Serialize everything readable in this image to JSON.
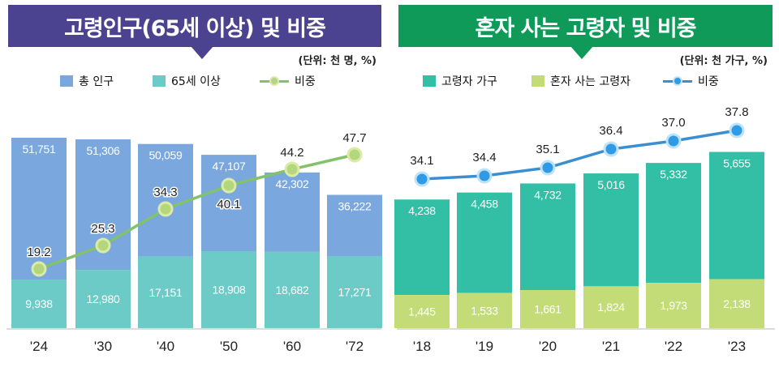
{
  "chart_data": [
    {
      "type": "bar",
      "stacked": true,
      "title": "고령인구(65세 이상) 및 비중",
      "unit": "(단위: 천 명, %)",
      "categories": [
        "'24",
        "'30",
        "'40",
        "'50",
        "'60",
        "'72"
      ],
      "series": [
        {
          "name": "65세 이상",
          "values": [
            9938,
            12980,
            17151,
            18908,
            18682,
            17271
          ],
          "labels": [
            "9,938",
            "12,980",
            "17,151",
            "18,908",
            "18,682",
            "17,271"
          ],
          "color": "#6ccbc6"
        },
        {
          "name": "총 인구",
          "values": [
            51751,
            51306,
            50059,
            47107,
            42302,
            36222
          ],
          "labels": [
            "51,751",
            "51,306",
            "50,059",
            "47,107",
            "42,302",
            "36,222"
          ],
          "color": "#7aa7dd"
        }
      ],
      "line": {
        "name": "비중",
        "values": [
          19.2,
          25.3,
          34.3,
          40.1,
          44.2,
          47.7
        ],
        "labels": [
          "19.2",
          "25.3",
          "34.3",
          "40.1",
          "44.2",
          "47.7"
        ],
        "color": "#82c26a",
        "marker_fill": "#b4d77e",
        "marker_stroke": "#dbeba7"
      }
    },
    {
      "type": "bar",
      "stacked": true,
      "title": "혼자 사는 고령자 및 비중",
      "unit": "(단위: 천 가구, %)",
      "categories": [
        "'18",
        "'19",
        "'20",
        "'21",
        "'22",
        "'23"
      ],
      "series": [
        {
          "name": "혼자 사는 고령자",
          "values": [
            1445,
            1533,
            1661,
            1824,
            1973,
            2138
          ],
          "labels": [
            "1,445",
            "1,533",
            "1,661",
            "1,824",
            "1,973",
            "2,138"
          ],
          "color": "#c3dc78"
        },
        {
          "name": "고령자 가구",
          "values": [
            4238,
            4458,
            4732,
            5016,
            5332,
            5655
          ],
          "labels": [
            "4,238",
            "4,458",
            "4,732",
            "5,016",
            "5,332",
            "5,655"
          ],
          "color": "#33bfa6"
        }
      ],
      "line": {
        "name": "비중",
        "values": [
          34.1,
          34.4,
          35.1,
          36.4,
          37.0,
          37.8
        ],
        "labels": [
          "34.1",
          "34.4",
          "35.1",
          "36.4",
          "37.0",
          "37.8"
        ],
        "color": "#3a8fd2",
        "marker_fill": "#2f9be6",
        "marker_stroke": "#bfe2f8"
      }
    }
  ],
  "panels": {
    "left": {
      "title": "고령인구(65세 이상) 및 비중",
      "unit": "(단위: 천 명, %)",
      "legend": {
        "total": "총 인구",
        "elderly": "65세 이상",
        "ratio": "비중"
      }
    },
    "right": {
      "title": "혼자 사는 고령자 및 비중",
      "unit": "(단위: 천 가구, %)",
      "legend": {
        "households": "고령자 가구",
        "alone": "혼자 사는 고령자",
        "ratio": "비중"
      }
    }
  }
}
